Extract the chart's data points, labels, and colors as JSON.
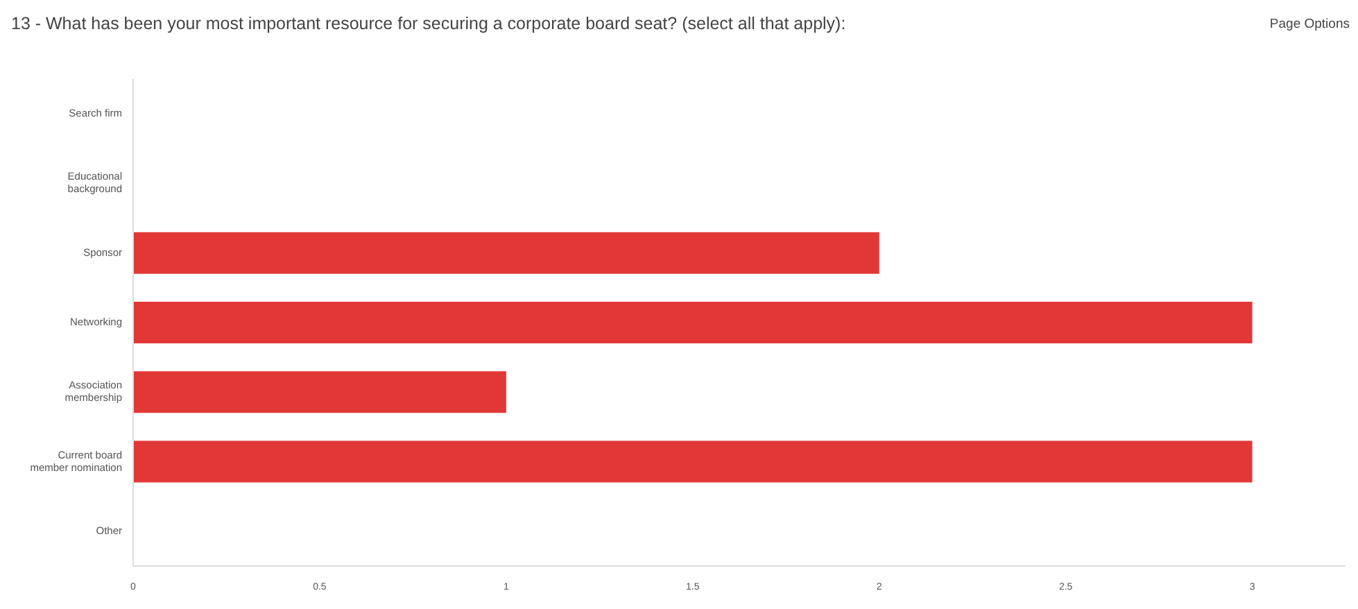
{
  "chart_data": {
    "type": "bar",
    "orientation": "horizontal",
    "title": "13 - What has been your most important resource for securing a corporate board seat? (select all that apply):",
    "annotations": [
      "Page Options"
    ],
    "categories": [
      "Search firm",
      "Educational background",
      "Sponsor",
      "Networking",
      "Association membership",
      "Current board member nomination",
      "Other"
    ],
    "values": [
      0,
      0,
      2,
      3,
      1,
      3,
      0
    ],
    "color": "#e23737",
    "xlim": [
      0,
      3.25
    ],
    "xticks": [
      0,
      0.5,
      1,
      1.5,
      2,
      2.5,
      3
    ]
  }
}
